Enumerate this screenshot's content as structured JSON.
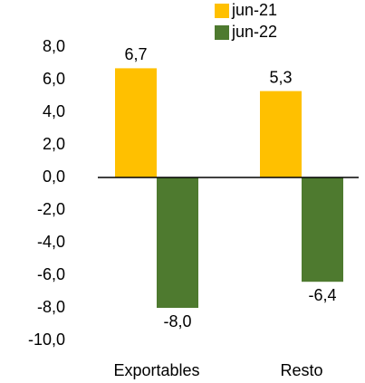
{
  "chart_data": {
    "type": "bar",
    "categories": [
      "Exportables",
      "Resto"
    ],
    "series": [
      {
        "name": "jun-21",
        "color": "#ffc000",
        "values": [
          6.7,
          5.3
        ],
        "value_labels": [
          "6,7",
          "5,3"
        ]
      },
      {
        "name": "jun-22",
        "color": "#4e7a2f",
        "values": [
          -8.0,
          -6.4
        ],
        "value_labels": [
          "-8,0",
          "-6,4"
        ]
      }
    ],
    "ylim": [
      -10,
      8
    ],
    "yticks": [
      {
        "value": 8,
        "label": "8,0"
      },
      {
        "value": 6,
        "label": "6,0"
      },
      {
        "value": 4,
        "label": "4,0"
      },
      {
        "value": 2,
        "label": "2,0"
      },
      {
        "value": 0,
        "label": "0,0"
      },
      {
        "value": -2,
        "label": "-2,0"
      },
      {
        "value": -4,
        "label": "-4,0"
      },
      {
        "value": -6,
        "label": "-6,0"
      },
      {
        "value": -8,
        "label": "-8,0"
      },
      {
        "value": -10,
        "label": "-10,0"
      }
    ],
    "grid": false,
    "legend": "top-right"
  }
}
